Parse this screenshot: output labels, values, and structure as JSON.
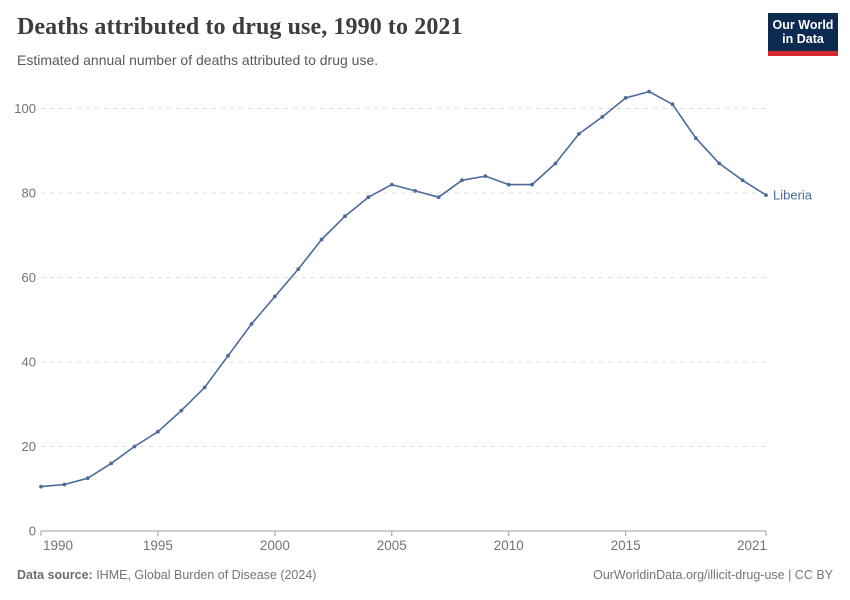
{
  "header": {
    "title": "Deaths attributed to drug use, 1990 to 2021",
    "subtitle": "Estimated annual number of deaths attributed to drug use."
  },
  "logo": {
    "line1": "Our World",
    "line2": "in Data",
    "bg_color": "#0d2a51",
    "accent_color": "#d7282f"
  },
  "chart_data": {
    "type": "line",
    "title": "Deaths attributed to drug use, 1990 to 2021",
    "x": [
      1990,
      1991,
      1992,
      1993,
      1994,
      1995,
      1996,
      1997,
      1998,
      1999,
      2000,
      2001,
      2002,
      2003,
      2004,
      2005,
      2006,
      2007,
      2008,
      2009,
      2010,
      2011,
      2012,
      2013,
      2014,
      2015,
      2016,
      2017,
      2018,
      2019,
      2020,
      2021
    ],
    "series": [
      {
        "name": "Liberia",
        "color": "#4c6a9c",
        "values": [
          10.5,
          11,
          12.5,
          16,
          20,
          23.5,
          28.5,
          34,
          41.5,
          49,
          55.5,
          62,
          69,
          74.5,
          79,
          82,
          80.5,
          79,
          83,
          84,
          82,
          82,
          87,
          94,
          98,
          102.5,
          104,
          101,
          93,
          87,
          83,
          79.5
        ]
      }
    ],
    "xticks": [
      1990,
      1995,
      2000,
      2005,
      2010,
      2015,
      2021
    ],
    "yticks": [
      0,
      20,
      40,
      60,
      80,
      100
    ],
    "ylim": [
      0,
      105
    ],
    "grid": "horizontal-dashed",
    "legend": "line-end-label",
    "colors": {
      "grid": "#dcdcdc",
      "axis": "#9c9c9c",
      "tick_label": "#737373"
    }
  },
  "footer": {
    "source_label": "Data source:",
    "source_text": " IHME, Global Burden of Disease (2024)",
    "credit": "OurWorldinData.org/illicit-drug-use | CC BY"
  }
}
